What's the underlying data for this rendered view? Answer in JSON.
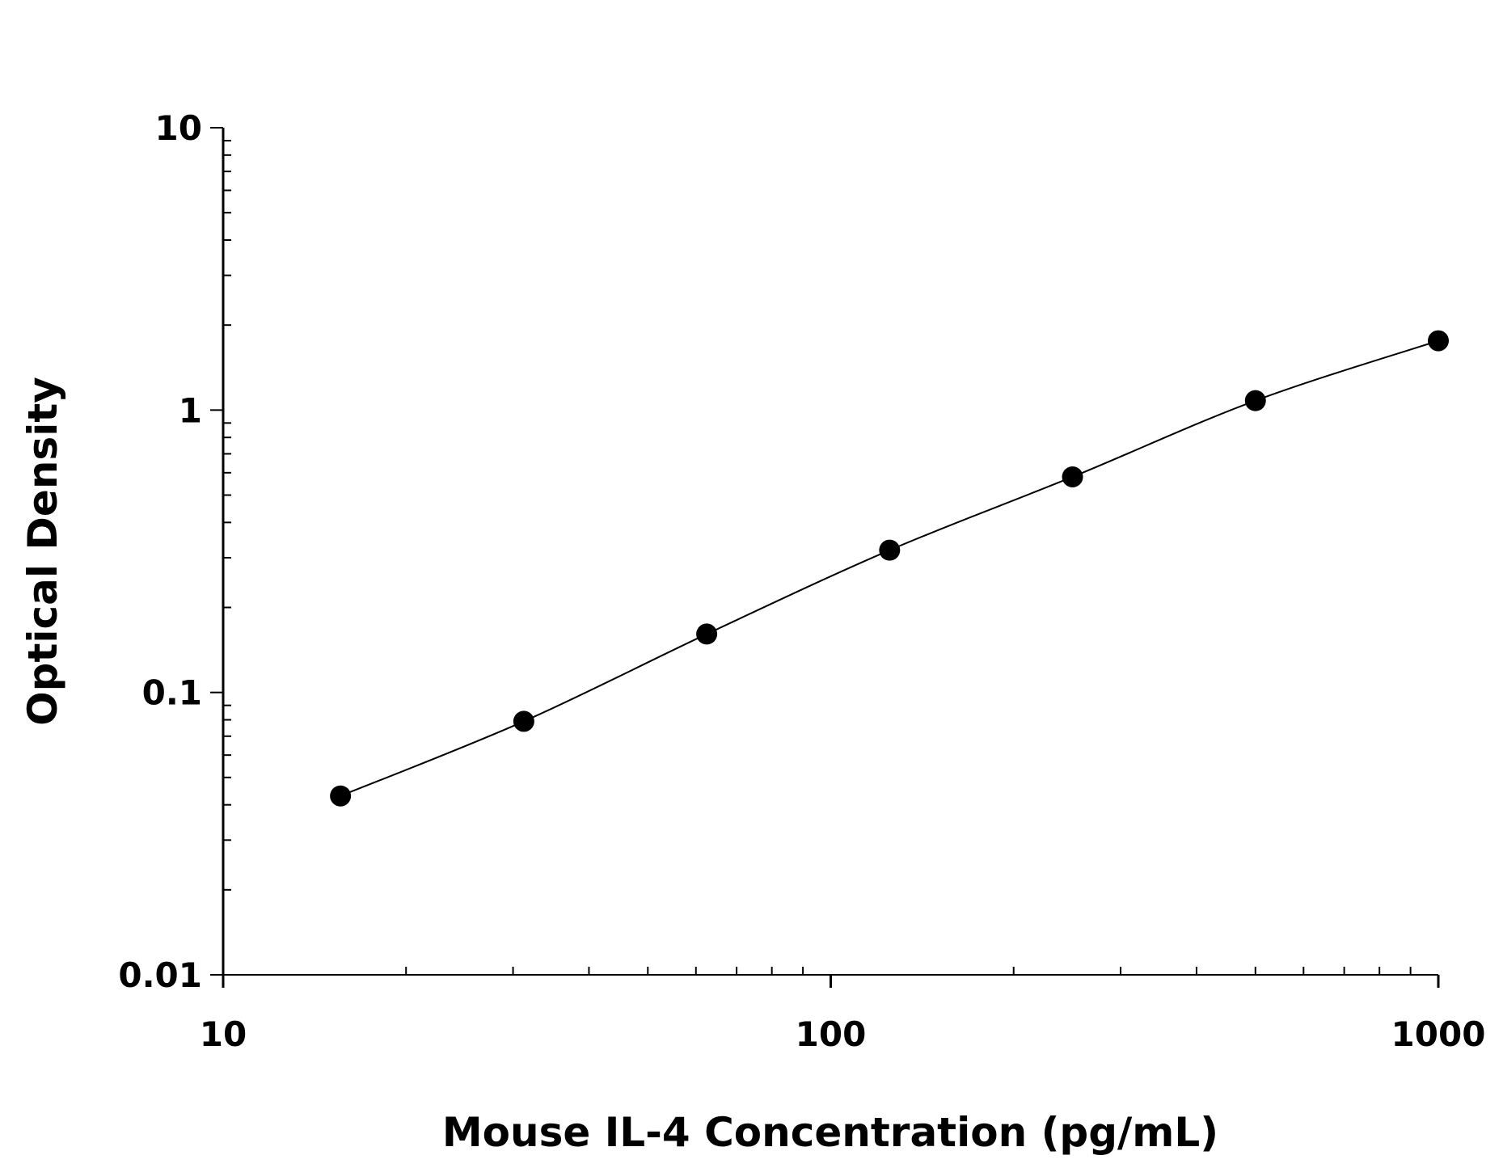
{
  "chart_data": {
    "type": "scatter",
    "title": "",
    "xlabel": "Mouse IL-4 Concentration (pg/mL)",
    "ylabel": "Optical Density",
    "xscale": "log",
    "yscale": "log",
    "xlim": [
      10,
      1000
    ],
    "ylim": [
      0.01,
      10
    ],
    "xticks": [
      10,
      100,
      1000
    ],
    "xtick_labels": [
      "10",
      "100",
      "1000"
    ],
    "yticks": [
      0.01,
      0.1,
      1,
      10
    ],
    "ytick_labels": [
      "0.01",
      "0.1",
      "1",
      "10"
    ],
    "grid": false,
    "legend": "none",
    "fit_line": true,
    "colors": {
      "points": "#000000",
      "line": "#000000"
    },
    "x": [
      15.6,
      31.25,
      62.5,
      125,
      250,
      500,
      1000
    ],
    "y": [
      0.043,
      0.079,
      0.161,
      0.319,
      0.58,
      1.08,
      1.76
    ]
  }
}
